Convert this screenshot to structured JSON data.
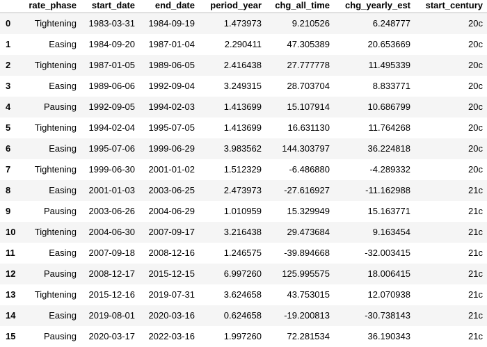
{
  "table": {
    "index_header": "",
    "columns": [
      "rate_phase",
      "start_date",
      "end_date",
      "period_year",
      "chg_all_time",
      "chg_yearly_est",
      "start_century"
    ],
    "rows": [
      {
        "index": "0",
        "cells": [
          "Tightening",
          "1983-03-31",
          "1984-09-19",
          "1.473973",
          "9.210526",
          "6.248777",
          "20c"
        ]
      },
      {
        "index": "1",
        "cells": [
          "Easing",
          "1984-09-20",
          "1987-01-04",
          "2.290411",
          "47.305389",
          "20.653669",
          "20c"
        ]
      },
      {
        "index": "2",
        "cells": [
          "Tightening",
          "1987-01-05",
          "1989-06-05",
          "2.416438",
          "27.777778",
          "11.495339",
          "20c"
        ]
      },
      {
        "index": "3",
        "cells": [
          "Easing",
          "1989-06-06",
          "1992-09-04",
          "3.249315",
          "28.703704",
          "8.833771",
          "20c"
        ]
      },
      {
        "index": "4",
        "cells": [
          "Pausing",
          "1992-09-05",
          "1994-02-03",
          "1.413699",
          "15.107914",
          "10.686799",
          "20c"
        ]
      },
      {
        "index": "5",
        "cells": [
          "Tightening",
          "1994-02-04",
          "1995-07-05",
          "1.413699",
          "16.631130",
          "11.764268",
          "20c"
        ]
      },
      {
        "index": "6",
        "cells": [
          "Easing",
          "1995-07-06",
          "1999-06-29",
          "3.983562",
          "144.303797",
          "36.224818",
          "20c"
        ]
      },
      {
        "index": "7",
        "cells": [
          "Tightening",
          "1999-06-30",
          "2001-01-02",
          "1.512329",
          "-6.486880",
          "-4.289332",
          "20c"
        ]
      },
      {
        "index": "8",
        "cells": [
          "Easing",
          "2001-01-03",
          "2003-06-25",
          "2.473973",
          "-27.616927",
          "-11.162988",
          "21c"
        ]
      },
      {
        "index": "9",
        "cells": [
          "Pausing",
          "2003-06-26",
          "2004-06-29",
          "1.010959",
          "15.329949",
          "15.163771",
          "21c"
        ]
      },
      {
        "index": "10",
        "cells": [
          "Tightening",
          "2004-06-30",
          "2007-09-17",
          "3.216438",
          "29.473684",
          "9.163454",
          "21c"
        ]
      },
      {
        "index": "11",
        "cells": [
          "Easing",
          "2007-09-18",
          "2008-12-16",
          "1.246575",
          "-39.894668",
          "-32.003415",
          "21c"
        ]
      },
      {
        "index": "12",
        "cells": [
          "Pausing",
          "2008-12-17",
          "2015-12-15",
          "6.997260",
          "125.995575",
          "18.006415",
          "21c"
        ]
      },
      {
        "index": "13",
        "cells": [
          "Tightening",
          "2015-12-16",
          "2019-07-31",
          "3.624658",
          "43.753015",
          "12.070938",
          "21c"
        ]
      },
      {
        "index": "14",
        "cells": [
          "Easing",
          "2019-08-01",
          "2020-03-16",
          "0.624658",
          "-19.200813",
          "-30.738143",
          "21c"
        ]
      },
      {
        "index": "15",
        "cells": [
          "Pausing",
          "2020-03-17",
          "2022-03-16",
          "1.997260",
          "72.281534",
          "36.190343",
          "21c"
        ]
      }
    ]
  }
}
